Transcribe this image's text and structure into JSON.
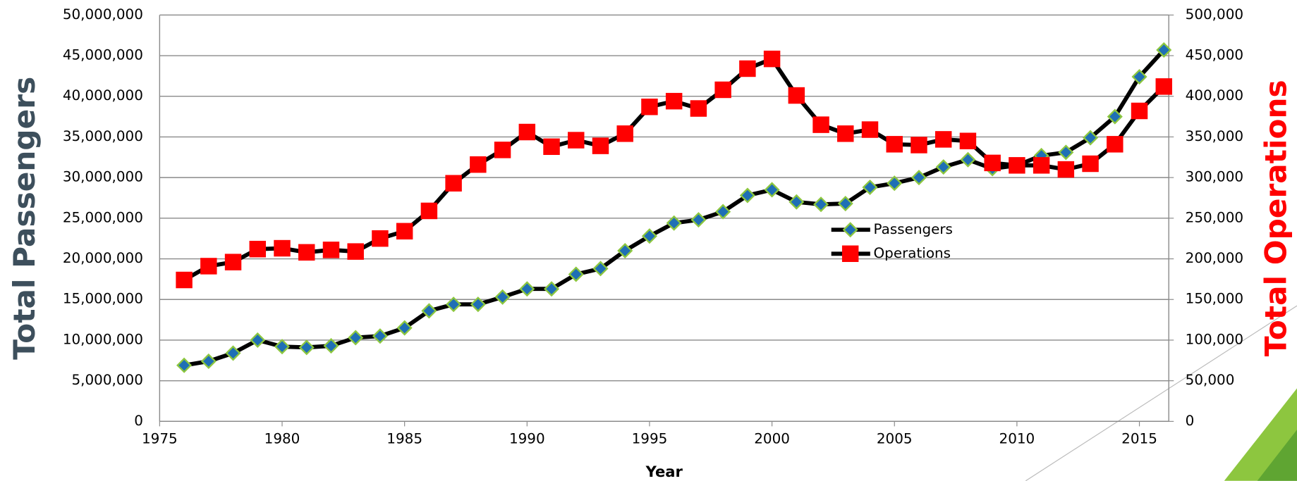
{
  "chart_data": {
    "type": "line",
    "x_label": "Year",
    "y_label": "Total Passengers",
    "y2_label": "Total Operations",
    "y_label_color": "#3d4f5c",
    "y2_label_color": "#ff0000",
    "grid": true,
    "x": [
      1976,
      1977,
      1978,
      1979,
      1980,
      1981,
      1982,
      1983,
      1984,
      1985,
      1986,
      1987,
      1988,
      1989,
      1990,
      1991,
      1992,
      1993,
      1994,
      1995,
      1996,
      1997,
      1998,
      1999,
      2000,
      2001,
      2002,
      2003,
      2004,
      2005,
      2006,
      2007,
      2008,
      2009,
      2010,
      2011,
      2012,
      2013,
      2014,
      2015,
      2016
    ],
    "xlim": [
      1975,
      2016.2
    ],
    "xticks": [
      1975,
      1980,
      1985,
      1990,
      1995,
      2000,
      2005,
      2010,
      2015
    ],
    "ylim": [
      0,
      50000000
    ],
    "yticks": [
      0,
      {
        "value": 5000000,
        "label": "5,000,000"
      },
      {
        "value": 10000000,
        "label": "10,000,000"
      },
      {
        "value": 15000000,
        "label": "15,000,000"
      },
      {
        "value": 20000000,
        "label": "20,000,000"
      },
      {
        "value": 25000000,
        "label": "25,000,000"
      },
      {
        "value": 30000000,
        "label": "30,000,000"
      },
      {
        "value": 35000000,
        "label": "35,000,000"
      },
      {
        "value": 40000000,
        "label": "40,000,000"
      },
      {
        "value": 45000000,
        "label": "45,000,000"
      },
      {
        "value": 50000000,
        "label": "50,000,000"
      }
    ],
    "y2lim": [
      0,
      500000
    ],
    "y2ticks": [
      0,
      {
        "value": 50000,
        "label": "50,000"
      },
      {
        "value": 100000,
        "label": "100,000"
      },
      {
        "value": 150000,
        "label": "150,000"
      },
      {
        "value": 200000,
        "label": "200,000"
      },
      {
        "value": 250000,
        "label": "250,000"
      },
      {
        "value": 300000,
        "label": "300,000"
      },
      {
        "value": 350000,
        "label": "350,000"
      },
      {
        "value": 400000,
        "label": "400,000"
      },
      {
        "value": 450000,
        "label": "450,000"
      },
      {
        "value": 500000,
        "label": "500,000"
      }
    ],
    "series": [
      {
        "name": "Passengers",
        "color": "#000000",
        "marker": "diamond",
        "marker_color": "#1f6fb5",
        "marker_edge": "#8cc63f",
        "values": [
          6900000,
          7400000,
          8400000,
          10000000,
          9200000,
          9100000,
          9300000,
          10300000,
          10500000,
          11500000,
          13600000,
          14400000,
          14400000,
          15300000,
          16300000,
          16300000,
          18100000,
          18800000,
          21000000,
          22800000,
          24400000,
          24800000,
          25800000,
          27800000,
          28500000,
          27000000,
          26700000,
          26800000,
          28800000,
          29300000,
          30000000,
          31300000,
          32200000,
          31100000,
          31500000,
          32700000,
          33100000,
          34900000,
          37500000,
          42400000,
          45700000
        ]
      },
      {
        "name": "Operations",
        "color": "#000000",
        "marker": "square",
        "marker_color": "#ff0000",
        "marker_edge": "#ff0000",
        "axis": "y2",
        "values": [
          174000,
          191000,
          196000,
          212000,
          213000,
          208000,
          211000,
          209000,
          225000,
          234000,
          259000,
          293000,
          316000,
          334000,
          356000,
          338000,
          346000,
          339000,
          354000,
          387000,
          394000,
          385000,
          408000,
          434000,
          446000,
          401000,
          365000,
          354000,
          359000,
          341000,
          340000,
          347000,
          345000,
          318000,
          315000,
          315000,
          310000,
          317000,
          341000,
          382000,
          412000
        ]
      }
    ]
  }
}
